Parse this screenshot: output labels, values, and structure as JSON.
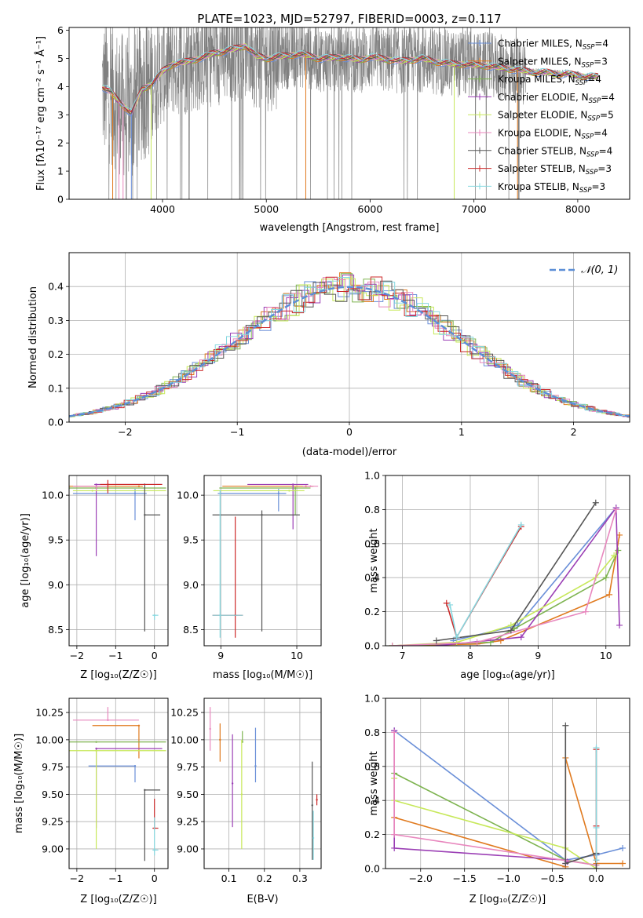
{
  "figure_title": "PLATE=1023, MJD=52797, FIBERID=0003, z=0.117",
  "series_colors": [
    "#6a8fd8",
    "#e07a1f",
    "#7db34f",
    "#9b3fb5",
    "#c7e85a",
    "#e887be",
    "#555555",
    "#cc2a2a",
    "#86d8e0"
  ],
  "chart_data": [
    {
      "id": "spectrum",
      "type": "line",
      "title": "",
      "xlabel": "wavelength [Angstrom, rest frame]",
      "ylabel": "Flux [fλ10⁻¹⁷ erg cm⁻² s⁻¹ Å⁻¹]",
      "xlim": [
        3100,
        8500
      ],
      "ylim": [
        0,
        6.1
      ],
      "xticks": [
        4000,
        5000,
        6000,
        7000,
        8000
      ],
      "yticks": [
        0,
        1,
        2,
        3,
        4,
        5,
        6
      ],
      "grid": false,
      "legend": "right",
      "data_trace_color": "#808080",
      "x": [
        3420,
        3500,
        3600,
        3700,
        3800,
        3900,
        4000,
        4100,
        4200,
        4300,
        4400,
        4500,
        4600,
        4700,
        4800,
        4900,
        5000,
        5100,
        5200,
        5300,
        5400,
        5500,
        5600,
        5700,
        5800,
        5900,
        6000,
        6100,
        6200,
        6300,
        6400,
        6500,
        6600,
        6700,
        6800,
        6900,
        7000,
        7100,
        7200,
        7300,
        7400,
        7500,
        7600,
        7700,
        7800,
        7900,
        8000,
        8100,
        8200
      ],
      "model_flux": [
        4.0,
        3.8,
        3.4,
        3.05,
        3.9,
        4.1,
        4.55,
        4.8,
        4.85,
        4.95,
        5.05,
        5.2,
        5.25,
        5.35,
        5.45,
        5.1,
        5.0,
        5.05,
        5.1,
        5.15,
        5.1,
        5.0,
        5.0,
        5.05,
        5.0,
        4.95,
        5.05,
        5.0,
        4.95,
        4.9,
        4.95,
        5.0,
        4.9,
        4.85,
        4.8,
        4.8,
        4.75,
        4.75,
        4.7,
        4.65,
        4.6,
        4.55,
        4.5,
        4.5,
        4.45,
        4.45,
        4.4,
        4.35,
        4.35
      ],
      "legend_entries": [
        {
          "label": "Chabrier MILES, N",
          "sub": "SSP",
          "tail": "=4"
        },
        {
          "label": "Salpeter MILES, N",
          "sub": "SSP",
          "tail": "=3"
        },
        {
          "label": "Kroupa MILES, N",
          "sub": "SSP",
          "tail": "=4"
        },
        {
          "label": "Chabrier ELODIE, N",
          "sub": "SSP",
          "tail": "=4"
        },
        {
          "label": "Salpeter ELODIE, N",
          "sub": "SSP",
          "tail": "=5"
        },
        {
          "label": "Kroupa ELODIE, N",
          "sub": "SSP",
          "tail": "=4"
        },
        {
          "label": "Chabrier STELIB, N",
          "sub": "SSP",
          "tail": "=4"
        },
        {
          "label": "Salpeter STELIB, N",
          "sub": "SSP",
          "tail": "=3"
        },
        {
          "label": "Kroupa STELIB, N",
          "sub": "SSP",
          "tail": "=3"
        }
      ]
    },
    {
      "id": "residuals",
      "type": "line",
      "title": "",
      "xlabel": "(data-model)/error",
      "ylabel": "Normed distribution",
      "xlim": [
        -2.5,
        2.5
      ],
      "ylim": [
        0,
        0.5
      ],
      "xticks": [
        -2,
        -1,
        0,
        1,
        2
      ],
      "yticks": [
        0.0,
        0.1,
        0.2,
        0.3,
        0.4
      ],
      "grid": true,
      "legend": "top-right",
      "gaussian_label": "𝒩(0, 1)",
      "gaussian_color": "#5b8ed6"
    },
    {
      "id": "age-vs-z",
      "type": "scatter",
      "xlabel": "Z [log₁₀(Z/Z☉)]",
      "ylabel": "age  [log₁₀(age/yr)]",
      "xlim": [
        -2.2,
        0.35
      ],
      "ylim": [
        8.32,
        10.22
      ],
      "xticks": [
        -2,
        -1,
        0
      ],
      "yticks": [
        8.5,
        9.0,
        9.5,
        10.0
      ],
      "grid": true,
      "points": [
        {
          "x": -0.5,
          "y": 10.02,
          "xerr": [
            1.6,
            0.3
          ],
          "yerr": [
            0.3,
            0.05
          ],
          "c": 0
        },
        {
          "x": -0.4,
          "y": 10.1,
          "xerr": [
            1.8,
            0.1
          ],
          "yerr": [
            0.0,
            0.0
          ],
          "c": 1
        },
        {
          "x": -1.5,
          "y": 10.08,
          "xerr": [
            0.7,
            1.8
          ],
          "yerr": [
            0.0,
            0.0
          ],
          "c": 2
        },
        {
          "x": -1.5,
          "y": 10.12,
          "xerr": [
            0.05,
            1.7
          ],
          "yerr": [
            0.8,
            0.0
          ],
          "c": 3
        },
        {
          "x": -1.6,
          "y": 10.05,
          "xerr": [
            0.5,
            1.9
          ],
          "yerr": [
            0.0,
            0.0
          ],
          "c": 4
        },
        {
          "x": -1.5,
          "y": 10.1,
          "xerr": [
            0.6,
            0.3
          ],
          "yerr": [
            0.05,
            0.0
          ],
          "c": 5
        },
        {
          "x": -0.25,
          "y": 9.78,
          "xerr": [
            0.0,
            0.4
          ],
          "yerr": [
            1.3,
            0.35
          ],
          "c": 6
        },
        {
          "x": -1.2,
          "y": 10.12,
          "xerr": [
            0.2,
            1.4
          ],
          "yerr": [
            0.1,
            0.05
          ],
          "c": 7
        },
        {
          "x": 0.0,
          "y": 8.66,
          "xerr": [
            0.05,
            0.1
          ],
          "yerr": [
            0.05,
            0.0
          ],
          "c": 8
        }
      ]
    },
    {
      "id": "age-vs-mass",
      "type": "scatter",
      "xlabel": "mass [log₁₀(M/M☉)]",
      "ylabel": "",
      "xlim": [
        8.78,
        10.32
      ],
      "ylim": [
        8.32,
        10.22
      ],
      "xticks": [
        9,
        10
      ],
      "yticks": [
        8.5,
        9.0,
        9.5,
        10.0
      ],
      "grid": true,
      "points": [
        {
          "x": 9.76,
          "y": 10.02,
          "xerr": [
            0.8,
            0.1
          ],
          "yerr": [
            0.2,
            0.05
          ],
          "c": 0
        },
        {
          "x": 10.12,
          "y": 10.1,
          "xerr": [
            1.1,
            0.1
          ],
          "yerr": [
            0.0,
            0.0
          ],
          "c": 1
        },
        {
          "x": 9.98,
          "y": 10.08,
          "xerr": [
            1.0,
            0.2
          ],
          "yerr": [
            0.3,
            0.0
          ],
          "c": 2
        },
        {
          "x": 9.95,
          "y": 10.12,
          "xerr": [
            0.6,
            0.2
          ],
          "yerr": [
            0.5,
            0.0
          ],
          "c": 3
        },
        {
          "x": 9.9,
          "y": 10.05,
          "xerr": [
            1.0,
            0.2
          ],
          "yerr": [
            0.0,
            0.0
          ],
          "c": 4
        },
        {
          "x": 10.18,
          "y": 10.1,
          "xerr": [
            0.1,
            0.1
          ],
          "yerr": [
            0.0,
            0.0
          ],
          "c": 5
        },
        {
          "x": 9.54,
          "y": 9.78,
          "xerr": [
            0.65,
            0.5
          ],
          "yerr": [
            1.3,
            0.05
          ],
          "c": 6
        },
        {
          "x": 9.19,
          "y": 8.66,
          "xerr": [
            0.3,
            0.1
          ],
          "yerr": [
            0.25,
            1.1
          ],
          "c": 7
        },
        {
          "x": 8.99,
          "y": 8.66,
          "xerr": [
            0.1,
            0.3
          ],
          "yerr": [
            0.25,
            1.4
          ],
          "c": 8
        }
      ]
    },
    {
      "id": "weight-vs-age",
      "type": "line",
      "xlabel": "age  [log₁₀(age/yr)]",
      "ylabel": "mass weight",
      "xlim": [
        6.75,
        10.35
      ],
      "ylim": [
        0,
        1.0
      ],
      "xticks": [
        7,
        8,
        9,
        10
      ],
      "yticks": [
        0.0,
        0.2,
        0.4,
        0.6,
        0.8,
        1.0
      ],
      "grid": true,
      "series": [
        {
          "c": 0,
          "x": [
            7.75,
            8.7,
            10.15
          ],
          "y": [
            0.03,
            0.12,
            0.81
          ]
        },
        {
          "c": 1,
          "x": [
            6.85,
            8.1,
            8.45,
            10.05,
            10.2
          ],
          "y": [
            0.0,
            0.01,
            0.03,
            0.3,
            0.65
          ]
        },
        {
          "c": 2,
          "x": [
            6.85,
            8.3,
            8.65,
            10.0,
            10.18
          ],
          "y": [
            0.0,
            0.02,
            0.1,
            0.4,
            0.56
          ]
        },
        {
          "c": 3,
          "x": [
            7.5,
            8.75,
            10.15,
            10.2
          ],
          "y": [
            0.0,
            0.05,
            0.81,
            0.12
          ]
        },
        {
          "c": 4,
          "x": [
            6.85,
            7.8,
            8.6,
            9.85,
            10.12
          ],
          "y": [
            0.0,
            0.02,
            0.12,
            0.4,
            0.53
          ]
        },
        {
          "c": 5,
          "x": [
            6.85,
            8.1,
            9.7,
            10.15
          ],
          "y": [
            0.0,
            0.02,
            0.2,
            0.8
          ]
        },
        {
          "c": 6,
          "x": [
            7.5,
            8.6,
            9.85
          ],
          "y": [
            0.03,
            0.09,
            0.84
          ]
        },
        {
          "c": 7,
          "x": [
            7.65,
            7.8,
            8.75
          ],
          "y": [
            0.25,
            0.05,
            0.7
          ]
        },
        {
          "c": 8,
          "x": [
            7.7,
            7.8,
            8.75
          ],
          "y": [
            0.24,
            0.05,
            0.71
          ]
        }
      ]
    },
    {
      "id": "mass-vs-z",
      "type": "scatter",
      "xlabel": "Z [log₁₀(Z/Z☉)]",
      "ylabel": "mass [log₁₀(M/M☉)]",
      "xlim": [
        -2.2,
        0.35
      ],
      "ylim": [
        8.82,
        10.38
      ],
      "xticks": [
        -2,
        -1,
        0
      ],
      "yticks": [
        9.0,
        9.25,
        9.5,
        9.75,
        10.0,
        10.25
      ],
      "grid": true,
      "points": [
        {
          "x": -0.5,
          "y": 9.76,
          "xerr": [
            1.2,
            0.0
          ],
          "yerr": [
            0.15,
            0.0
          ],
          "c": 0
        },
        {
          "x": -0.4,
          "y": 10.13,
          "xerr": [
            1.2,
            0.0
          ],
          "yerr": [
            0.3,
            0.0
          ],
          "c": 1
        },
        {
          "x": -1.5,
          "y": 9.98,
          "xerr": [
            0.7,
            1.8
          ],
          "yerr": [
            0.0,
            0.0
          ],
          "c": 2
        },
        {
          "x": -1.5,
          "y": 9.92,
          "xerr": [
            0.0,
            1.7
          ],
          "yerr": [
            0.73,
            0.0
          ],
          "c": 3
        },
        {
          "x": -1.5,
          "y": 9.9,
          "xerr": [
            0.7,
            1.8
          ],
          "yerr": [
            0.9,
            0.0
          ],
          "c": 4
        },
        {
          "x": -1.2,
          "y": 10.18,
          "xerr": [
            0.9,
            0.8
          ],
          "yerr": [
            0.0,
            0.12
          ],
          "c": 5
        },
        {
          "x": -0.25,
          "y": 9.54,
          "xerr": [
            0.0,
            0.4
          ],
          "yerr": [
            0.65,
            0.0
          ],
          "c": 6
        },
        {
          "x": 0.0,
          "y": 9.19,
          "xerr": [
            0.05,
            0.1
          ],
          "yerr": [
            0.0,
            0.27
          ],
          "c": 7
        },
        {
          "x": 0.0,
          "y": 8.99,
          "xerr": [
            0.05,
            0.1
          ],
          "yerr": [
            0.05,
            0.3
          ],
          "c": 8
        }
      ]
    },
    {
      "id": "mass-vs-ebv",
      "type": "scatter",
      "xlabel": "E(B-V)",
      "ylabel": "",
      "xlim": [
        0.03,
        0.36
      ],
      "ylim": [
        8.82,
        10.38
      ],
      "xticks": [
        0.1,
        0.2,
        0.3
      ],
      "yticks": [
        9.0,
        9.25,
        9.5,
        9.75,
        10.0,
        10.25
      ],
      "grid": true,
      "points": [
        {
          "x": 0.175,
          "y": 9.76,
          "yerr": [
            0.15,
            0.35
          ],
          "c": 0
        },
        {
          "x": 0.075,
          "y": 10.0,
          "yerr": [
            0.2,
            0.15
          ],
          "c": 1
        },
        {
          "x": 0.138,
          "y": 9.98,
          "yerr": [
            0.0,
            0.1
          ],
          "c": 2
        },
        {
          "x": 0.11,
          "y": 9.6,
          "yerr": [
            0.4,
            0.45
          ],
          "c": 3
        },
        {
          "x": 0.136,
          "y": 9.5,
          "yerr": [
            0.5,
            0.5
          ],
          "c": 4
        },
        {
          "x": 0.047,
          "y": 10.1,
          "yerr": [
            0.2,
            0.2
          ],
          "c": 5
        },
        {
          "x": 0.335,
          "y": 9.4,
          "yerr": [
            0.5,
            0.4
          ],
          "c": 6
        },
        {
          "x": 0.348,
          "y": 9.45,
          "yerr": [
            0.05,
            0.05
          ],
          "c": 7
        },
        {
          "x": 0.338,
          "y": 9.1,
          "yerr": [
            0.2,
            0.25
          ],
          "c": 8
        }
      ]
    },
    {
      "id": "weight-vs-z",
      "type": "line",
      "xlabel": "Z [log₁₀(Z/Z☉)]",
      "ylabel": "mass weight",
      "xlim": [
        -2.4,
        0.38
      ],
      "ylim": [
        0,
        1.0
      ],
      "xticks": [
        -2.0,
        -1.5,
        -1.0,
        -0.5,
        0.0
      ],
      "yticks": [
        0.0,
        0.2,
        0.4,
        0.6,
        0.8,
        1.0
      ],
      "grid": true,
      "series": [
        {
          "c": 0,
          "x": [
            -2.3,
            -0.35,
            0.0,
            0.3
          ],
          "y": [
            0.81,
            0.05,
            0.08,
            0.12
          ]
        },
        {
          "c": 1,
          "x": [
            -2.3,
            -0.35,
            -0.35,
            0.0,
            0.3
          ],
          "y": [
            0.3,
            0.01,
            0.65,
            0.03,
            0.03
          ]
        },
        {
          "c": 2,
          "x": [
            -2.3,
            -0.35,
            0.0
          ],
          "y": [
            0.56,
            0.05,
            0.02
          ]
        },
        {
          "c": 3,
          "x": [
            -2.3,
            -2.3,
            -0.35,
            -0.35,
            -0.33
          ],
          "y": [
            0.81,
            0.12,
            0.05,
            0.03,
            0.04
          ]
        },
        {
          "c": 4,
          "x": [
            -2.3,
            -2.3,
            -0.35,
            0.0
          ],
          "y": [
            0.53,
            0.4,
            0.12,
            0.0
          ]
        },
        {
          "c": 5,
          "x": [
            -2.3,
            -2.3,
            0.0
          ],
          "y": [
            0.8,
            0.2,
            0.02
          ]
        },
        {
          "c": 6,
          "x": [
            -0.35,
            -0.35,
            0.0,
            0.0
          ],
          "y": [
            0.84,
            0.03,
            0.09,
            0.0
          ]
        },
        {
          "c": 7,
          "x": [
            0.0,
            0.0,
            0.0
          ],
          "y": [
            0.7,
            0.25,
            0.05
          ]
        },
        {
          "c": 8,
          "x": [
            0.0,
            0.0,
            0.0
          ],
          "y": [
            0.71,
            0.24,
            0.05
          ]
        }
      ]
    }
  ]
}
